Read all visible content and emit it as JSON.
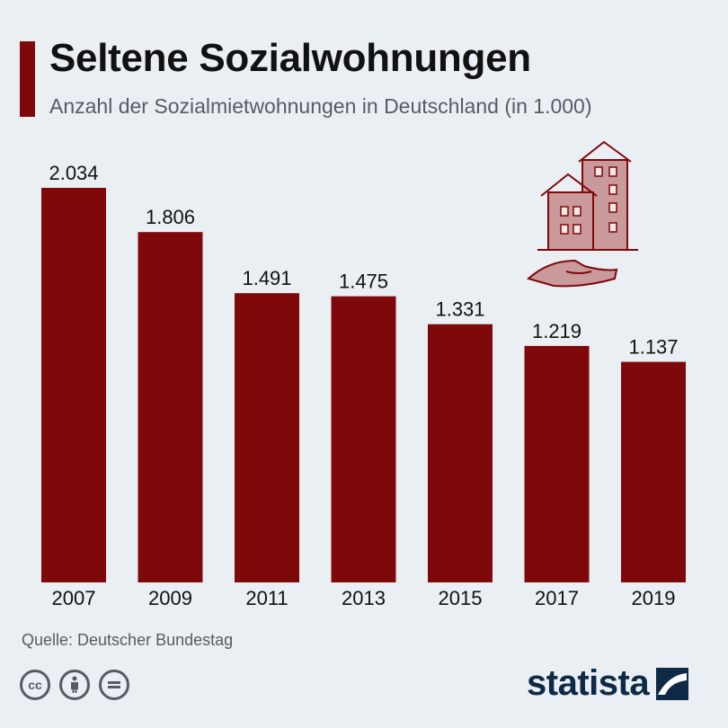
{
  "header": {
    "title": "Seltene Sozialwohnungen",
    "subtitle": "Anzahl der Sozialmietwohnungen in Deutschland (in 1.000)"
  },
  "colors": {
    "bar": "#7f080b",
    "accent": "#7f080b",
    "background": "#eaeff4",
    "illustration": "#c9999b"
  },
  "chart_data": {
    "type": "bar",
    "title": "Seltene Sozialwohnungen",
    "subtitle": "Anzahl der Sozialmietwohnungen in Deutschland (in 1.000)",
    "categories": [
      "2007",
      "2009",
      "2011",
      "2013",
      "2015",
      "2017",
      "2019"
    ],
    "values": [
      2034,
      1806,
      1491,
      1475,
      1331,
      1219,
      1137
    ],
    "value_labels": [
      "2.034",
      "1.806",
      "1.491",
      "1.475",
      "1.331",
      "1.219",
      "1.137"
    ],
    "xlabel": "",
    "ylabel": "",
    "ylim": [
      0,
      2034
    ],
    "grid": false,
    "legend": "none"
  },
  "footer": {
    "source": "Quelle: Deutscher Bundestag",
    "license_icons": [
      "cc-icon",
      "person-icon",
      "equals-icon"
    ],
    "brand": "statista"
  },
  "illustration": {
    "icon": "houses-on-hand-icon"
  }
}
